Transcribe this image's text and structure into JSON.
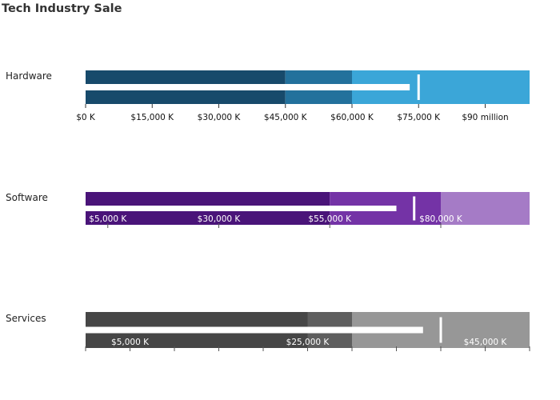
{
  "chart_data": {
    "type": "bullet",
    "title": "Tech Industry Sale",
    "bullets": [
      {
        "category": "Hardware",
        "range_limits": [
          45000,
          60000,
          100000
        ],
        "range_colors": [
          "#174a6b",
          "#23719c",
          "#3ba6d8"
        ],
        "value": 73000,
        "target": 75000,
        "axis_min": 0,
        "axis_max": 100000,
        "ticks": [
          {
            "value": 0,
            "label": "$0 K"
          },
          {
            "value": 15000,
            "label": "$15,000 K"
          },
          {
            "value": 30000,
            "label": "$30,000 K"
          },
          {
            "value": 45000,
            "label": "$45,000 K"
          },
          {
            "value": 60000,
            "label": "$60,000 K"
          },
          {
            "value": 75000,
            "label": "$75,000 K"
          },
          {
            "value": 90000,
            "label": "$90 million"
          }
        ],
        "tick_position": "outside"
      },
      {
        "category": "Software",
        "range_limits": [
          55000,
          80000,
          100000
        ],
        "range_colors": [
          "#4a1479",
          "#7433a6",
          "#a57bc6"
        ],
        "value": 70000,
        "target": 74000,
        "axis_min": 0,
        "axis_max": 100000,
        "ticks": [
          {
            "value": 5000,
            "label": "$5,000 K"
          },
          {
            "value": 30000,
            "label": "$30,000 K"
          },
          {
            "value": 55000,
            "label": "$55,000 K"
          },
          {
            "value": 80000,
            "label": "$80,000 K"
          }
        ],
        "tick_position": "inside"
      },
      {
        "category": "Services",
        "range_limits": [
          25000,
          30000,
          50000
        ],
        "range_colors": [
          "#464646",
          "#5e5e5e",
          "#979797"
        ],
        "value": 38000,
        "target": 40000,
        "axis_min": 0,
        "axis_max": 50000,
        "ticks": [
          {
            "value": 5000,
            "label": "$5,000 K"
          },
          {
            "value": 25000,
            "label": "$25,000 K"
          },
          {
            "value": 45000,
            "label": "$45,000 K"
          }
        ],
        "minor_ticks": [
          0,
          5000,
          10000,
          15000,
          20000,
          25000,
          30000,
          35000,
          40000,
          45000,
          50000
        ],
        "tick_position": "inside"
      }
    ],
    "value_bar_color": "#ffffff",
    "target_marker_color": "#ffffff"
  }
}
